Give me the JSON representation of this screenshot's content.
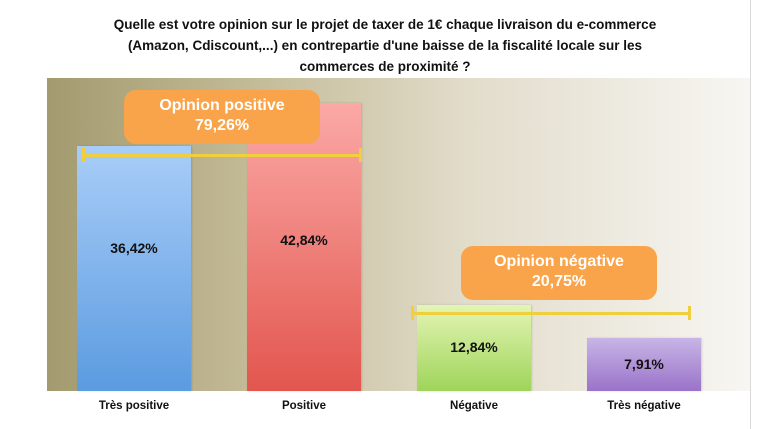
{
  "chart_data": {
    "type": "bar",
    "title_lines": [
      "Quelle est votre opinion sur le projet de taxer de 1€ chaque livraison du e-commerce",
      "(Amazon, Cdiscount,...) en contrepartie d'une baisse de la fiscalité locale sur les",
      "commerces de proximité ?"
    ],
    "categories": [
      "Très positive",
      "Positive",
      "Négative",
      "Très négative"
    ],
    "values": [
      36.42,
      42.84,
      12.84,
      7.91
    ],
    "value_labels": [
      "36,42%",
      "42,84%",
      "12,84%",
      "7,91%"
    ],
    "colors": [
      "#5b9be0",
      "#e2564e",
      "#9fd45a",
      "#9a73c9"
    ],
    "ylim": [
      0,
      46.5
    ],
    "annotations": [
      {
        "title": "Opinion positive",
        "value": "79,26%",
        "spans": [
          "Très positive",
          "Positive"
        ]
      },
      {
        "title": "Opinion négative",
        "value": "20,75%",
        "spans": [
          "Négative",
          "Très négative"
        ]
      }
    ]
  }
}
